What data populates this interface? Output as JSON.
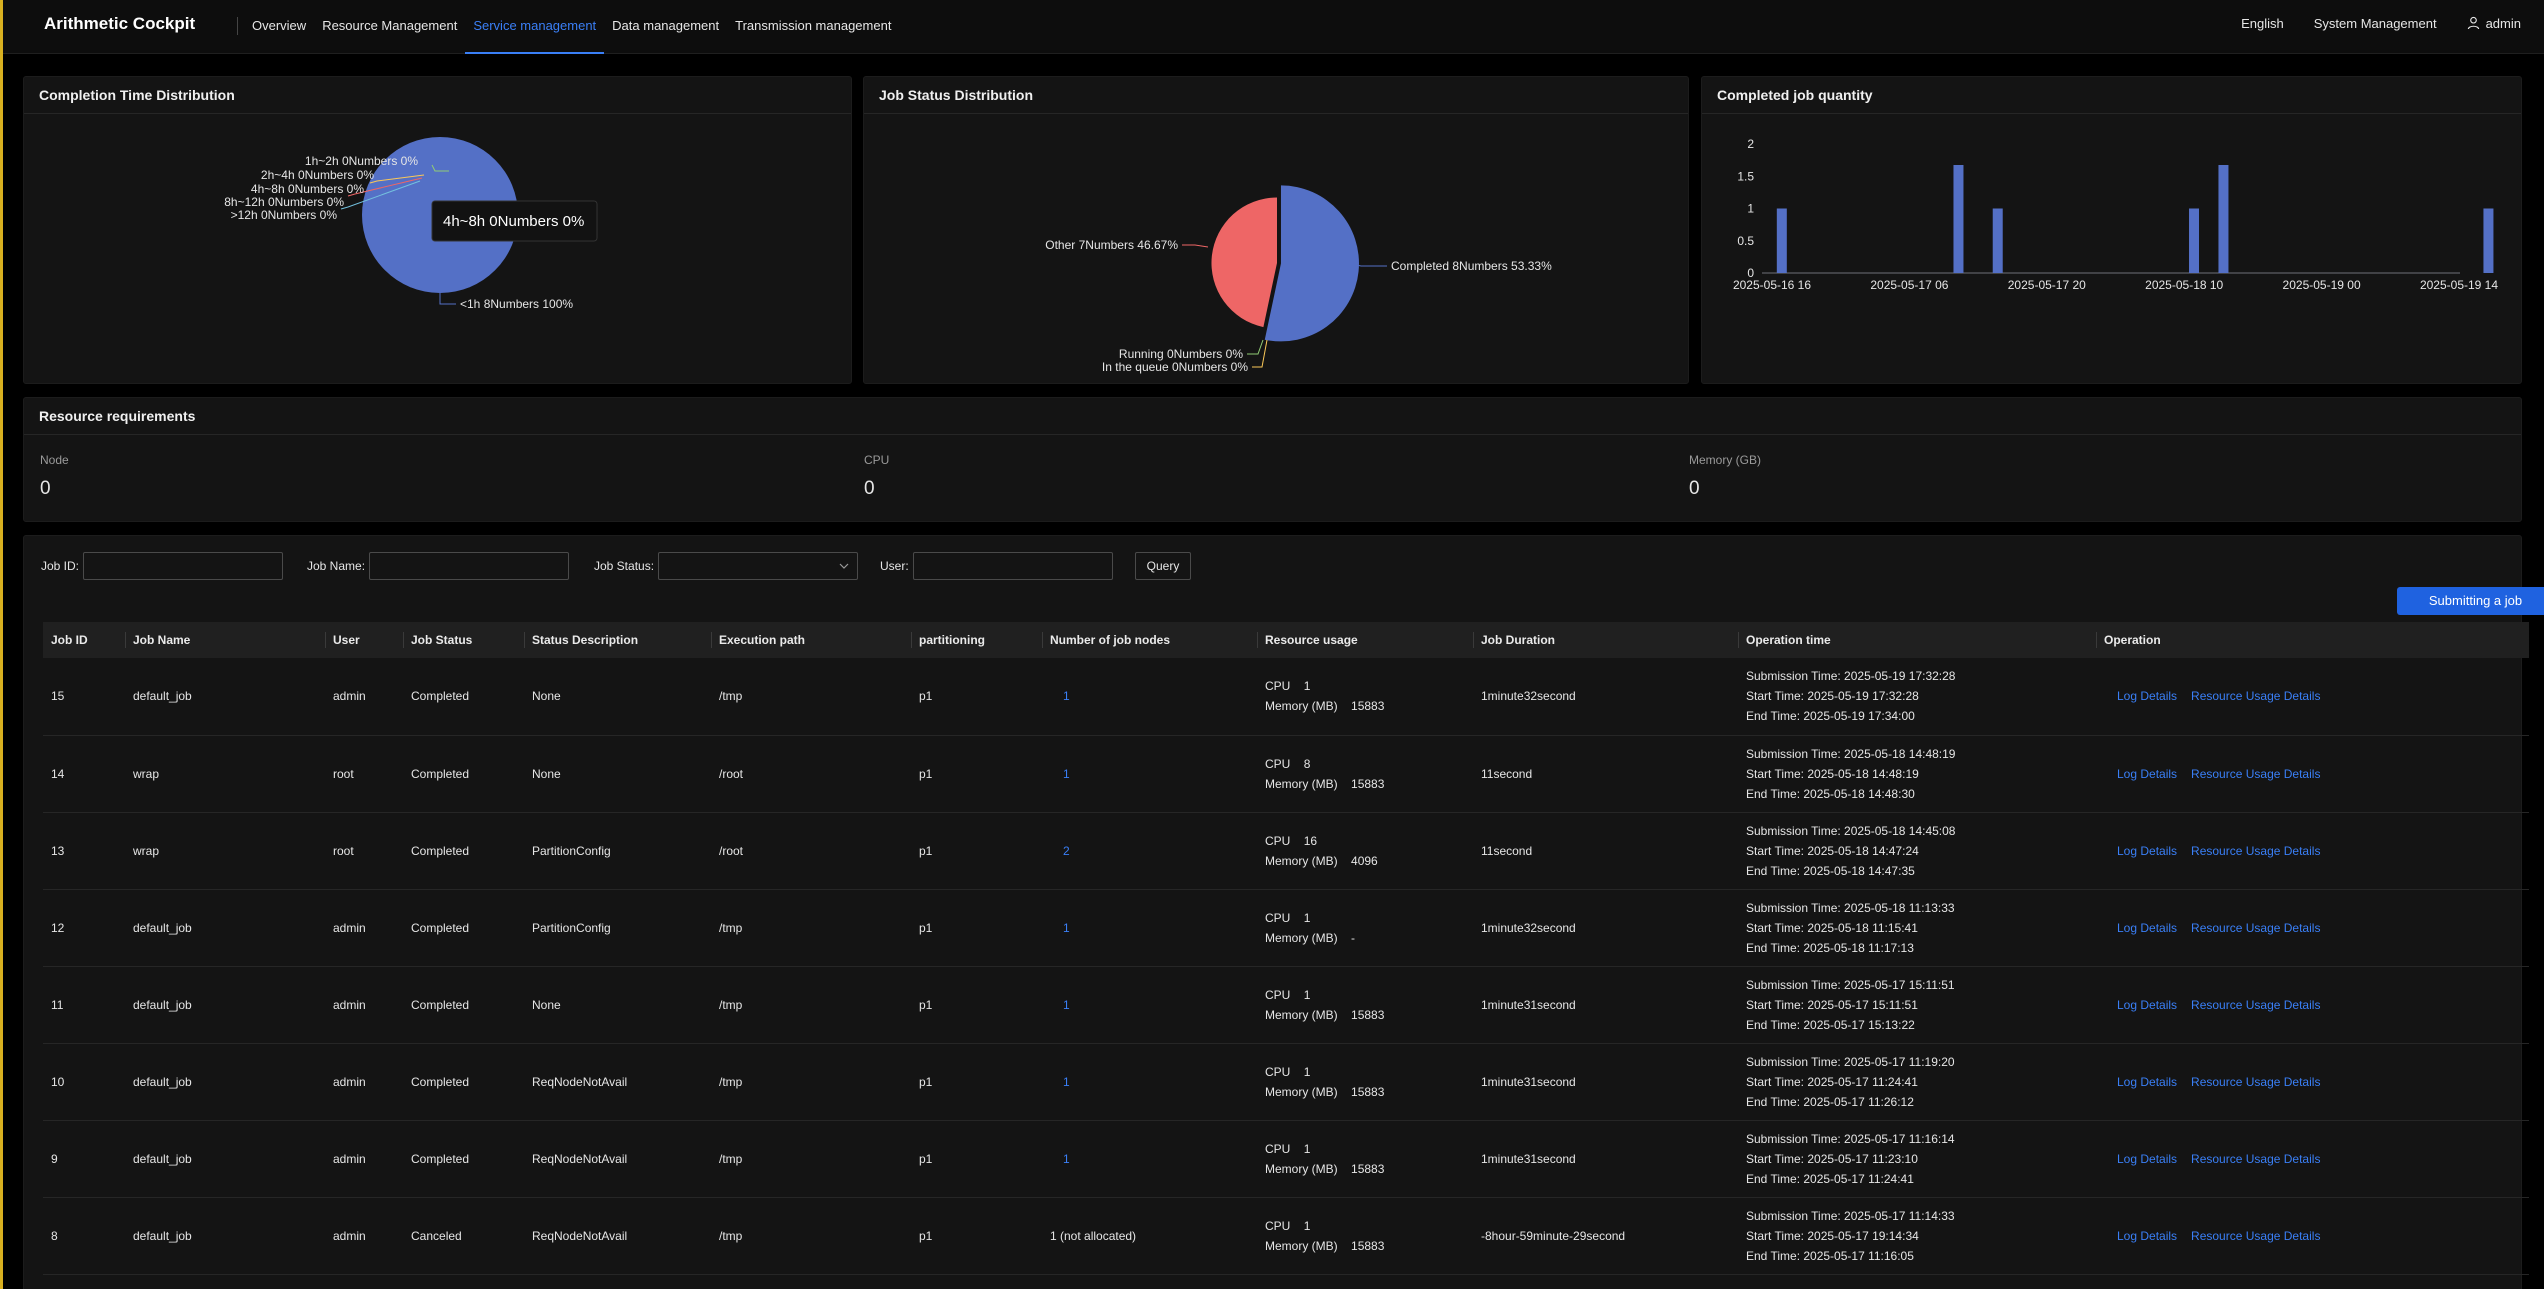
{
  "header": {
    "brand": "Arithmetic Cockpit",
    "nav": [
      {
        "label": "Overview",
        "active": false
      },
      {
        "label": "Resource Management",
        "active": false
      },
      {
        "label": "Service management",
        "active": true
      },
      {
        "label": "Data management",
        "active": false
      },
      {
        "label": "Transmission management",
        "active": false
      }
    ],
    "language": "English",
    "system": "System Management",
    "user": "admin"
  },
  "completion_card": {
    "title": "Completion Time Distribution",
    "tooltip": "4h~8h 0Numbers 0%"
  },
  "status_card": {
    "title": "Job Status Distribution"
  },
  "quantity_card": {
    "title": "Completed job quantity"
  },
  "chart_data": [
    {
      "type": "pie",
      "title": "Completion Time Distribution",
      "slices": [
        {
          "label": "<1h",
          "value": 8,
          "percent": "100%",
          "text": "<1h 8Numbers 100%"
        },
        {
          "label": "1h~2h",
          "value": 0,
          "percent": "0%",
          "text": "1h~2h 0Numbers 0%"
        },
        {
          "label": "2h~4h",
          "value": 0,
          "percent": "0%",
          "text": "2h~4h 0Numbers 0%"
        },
        {
          "label": "4h~8h",
          "value": 0,
          "percent": "0%",
          "text": "4h~8h 0Numbers 0%"
        },
        {
          "label": "8h~12h",
          "value": 0,
          "percent": "0%",
          "text": "8h~12h 0Numbers 0%"
        },
        {
          "label": ">12h",
          "value": 0,
          "percent": "0%",
          "text": ">12h 0Numbers 0%"
        }
      ],
      "colors": [
        "#5470c6"
      ]
    },
    {
      "type": "pie",
      "title": "Job Status Distribution",
      "slices": [
        {
          "label": "Completed",
          "value": 8,
          "percent": "53.33%",
          "text": "Completed 8Numbers 53.33%",
          "color": "#5470c6"
        },
        {
          "label": "Running",
          "value": 0,
          "percent": "0%",
          "text": "Running 0Numbers 0%",
          "color": "#91cc75"
        },
        {
          "label": "In the queue",
          "value": 0,
          "percent": "0%",
          "text": "In the queue 0Numbers 0%",
          "color": "#fac858"
        },
        {
          "label": "Other",
          "value": 7,
          "percent": "46.67%",
          "text": "Other 7Numbers 46.67%",
          "color": "#ee6666"
        }
      ]
    },
    {
      "type": "bar",
      "title": "Completed job quantity",
      "x_tick_labels": [
        "2025-05-16 16",
        "2025-05-17 06",
        "2025-05-17 20",
        "2025-05-18 10",
        "2025-05-19 00",
        "2025-05-19 14"
      ],
      "x": [
        "2025-05-16 17",
        "2025-05-17 11",
        "2025-05-17 15",
        "2025-05-18 11",
        "2025-05-18 14",
        "2025-05-19 17"
      ],
      "values": [
        1,
        2,
        1,
        1,
        2,
        1
      ],
      "ylim": [
        0,
        2
      ],
      "y_ticks": [
        "0",
        "0.5",
        "1",
        "1.5",
        "2"
      ],
      "color": "#5470c6"
    }
  ],
  "resources": {
    "title": "Resource requirements",
    "items": [
      {
        "label": "Node",
        "value": "0"
      },
      {
        "label": "CPU",
        "value": "0"
      },
      {
        "label": "Memory (GB)",
        "value": "0"
      }
    ]
  },
  "filters": {
    "job_id": "Job ID:",
    "job_name": "Job Name:",
    "job_status": "Job Status:",
    "user": "User:",
    "query": "Query",
    "submit": "Submitting a job"
  },
  "table": {
    "columns": [
      "Job ID",
      "Job Name",
      "User",
      "Job Status",
      "Status Description",
      "Execution path",
      "partitioning",
      "Number of job nodes",
      "Resource usage",
      "Job Duration",
      "Operation time",
      "Operation"
    ],
    "cpu_label": "CPU",
    "mem_label": "Memory (MB)",
    "submission_prefix": "Submission Time: ",
    "start_prefix": "Start Time: ",
    "end_prefix": "End Time: ",
    "log_link": "Log Details",
    "usage_link": "Resource Usage Details",
    "rows": [
      {
        "id": "15",
        "name": "default_job",
        "user": "admin",
        "status": "Completed",
        "desc": "None",
        "path": "/tmp",
        "part": "p1",
        "nodes": "1",
        "nodes_link": true,
        "cpu": "1",
        "mem": "15883",
        "duration": "1minute32second",
        "submit": "2025-05-19 17:32:28",
        "start": "2025-05-19 17:32:28",
        "end": "2025-05-19 17:34:00"
      },
      {
        "id": "14",
        "name": "wrap",
        "user": "root",
        "status": "Completed",
        "desc": "None",
        "path": "/root",
        "part": "p1",
        "nodes": "1",
        "nodes_link": true,
        "cpu": "8",
        "mem": "15883",
        "duration": "11second",
        "submit": "2025-05-18 14:48:19",
        "start": "2025-05-18 14:48:19",
        "end": "2025-05-18 14:48:30"
      },
      {
        "id": "13",
        "name": "wrap",
        "user": "root",
        "status": "Completed",
        "desc": "PartitionConfig",
        "path": "/root",
        "part": "p1",
        "nodes": "2",
        "nodes_link": true,
        "cpu": "16",
        "mem": "4096",
        "duration": "11second",
        "submit": "2025-05-18 14:45:08",
        "start": "2025-05-18 14:47:24",
        "end": "2025-05-18 14:47:35"
      },
      {
        "id": "12",
        "name": "default_job",
        "user": "admin",
        "status": "Completed",
        "desc": "PartitionConfig",
        "path": "/tmp",
        "part": "p1",
        "nodes": "1",
        "nodes_link": true,
        "cpu": "1",
        "mem": "-",
        "duration": "1minute32second",
        "submit": "2025-05-18 11:13:33",
        "start": "2025-05-18 11:15:41",
        "end": "2025-05-18 11:17:13"
      },
      {
        "id": "11",
        "name": "default_job",
        "user": "admin",
        "status": "Completed",
        "desc": "None",
        "path": "/tmp",
        "part": "p1",
        "nodes": "1",
        "nodes_link": true,
        "cpu": "1",
        "mem": "15883",
        "duration": "1minute31second",
        "submit": "2025-05-17 15:11:51",
        "start": "2025-05-17 15:11:51",
        "end": "2025-05-17 15:13:22"
      },
      {
        "id": "10",
        "name": "default_job",
        "user": "admin",
        "status": "Completed",
        "desc": "ReqNodeNotAvail",
        "path": "/tmp",
        "part": "p1",
        "nodes": "1",
        "nodes_link": true,
        "cpu": "1",
        "mem": "15883",
        "duration": "1minute31second",
        "submit": "2025-05-17 11:19:20",
        "start": "2025-05-17 11:24:41",
        "end": "2025-05-17 11:26:12"
      },
      {
        "id": "9",
        "name": "default_job",
        "user": "admin",
        "status": "Completed",
        "desc": "ReqNodeNotAvail",
        "path": "/tmp",
        "part": "p1",
        "nodes": "1",
        "nodes_link": true,
        "cpu": "1",
        "mem": "15883",
        "duration": "1minute31second",
        "submit": "2025-05-17 11:16:14",
        "start": "2025-05-17 11:23:10",
        "end": "2025-05-17 11:24:41"
      },
      {
        "id": "8",
        "name": "default_job",
        "user": "admin",
        "status": "Canceled",
        "desc": "ReqNodeNotAvail",
        "path": "/tmp",
        "part": "p1",
        "nodes": "1 (not allocated)",
        "nodes_link": false,
        "cpu": "1",
        "mem": "15883",
        "duration": "-8hour-59minute-29second",
        "submit": "2025-05-17 11:14:33",
        "start": "2025-05-17 19:14:34",
        "end": "2025-05-17 11:16:05"
      }
    ]
  }
}
